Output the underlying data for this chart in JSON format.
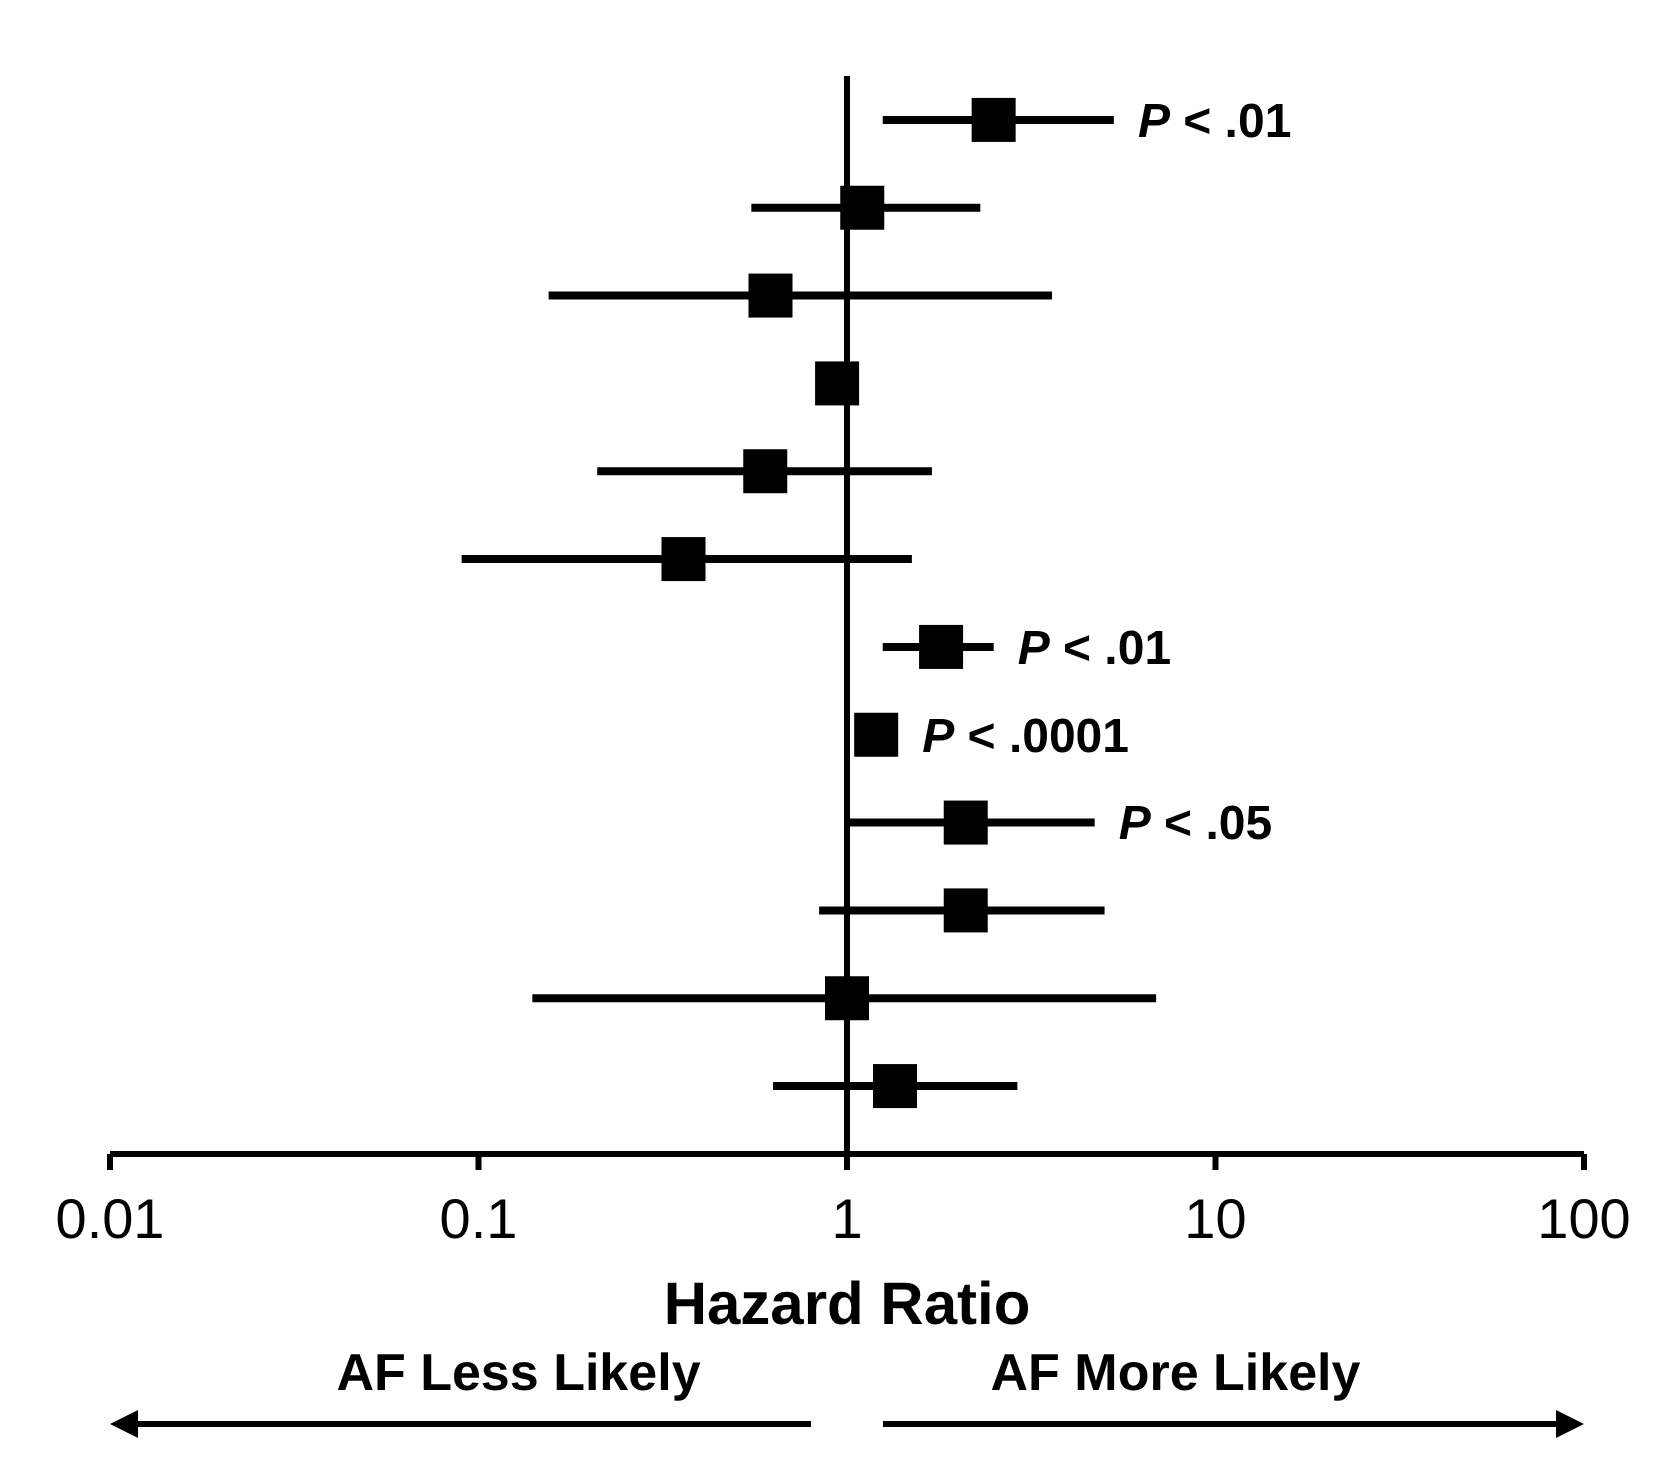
{
  "chart_data": {
    "type": "scatter",
    "orientation": "horizontal",
    "xlabel": "Hazard Ratio",
    "categories": [
      null,
      null,
      null,
      null,
      null,
      null,
      null,
      null,
      null,
      null,
      null,
      null
    ],
    "values": [
      2.5,
      1.1,
      0.62,
      0.94,
      0.6,
      0.36,
      1.8,
      1.2,
      2.1,
      2.1,
      1.0,
      1.35
    ],
    "errors": [
      [
        1.25,
        5.3
      ],
      [
        0.55,
        2.3
      ],
      [
        0.155,
        3.6
      ],
      null,
      [
        0.21,
        1.7
      ],
      [
        0.09,
        1.5
      ],
      [
        1.25,
        2.5
      ],
      null,
      [
        1.0,
        4.7
      ],
      [
        0.84,
        5.0
      ],
      [
        0.14,
        6.9
      ],
      [
        0.63,
        2.9
      ]
    ],
    "value_labels": [
      "P < .01",
      null,
      null,
      null,
      null,
      null,
      "P < .01",
      "P < .0001",
      "P < .05",
      null,
      null,
      null
    ],
    "color": "#000000",
    "marker": "square",
    "log": "x",
    "xlim": [
      0.01,
      100
    ],
    "xticks": [
      0.01,
      0.1,
      1,
      10,
      100
    ],
    "ref_lines": [
      {
        "axis": "x",
        "value": 1
      }
    ],
    "annotations": [
      "AF Less Likely",
      "AF More Likely"
    ],
    "grid": false
  }
}
